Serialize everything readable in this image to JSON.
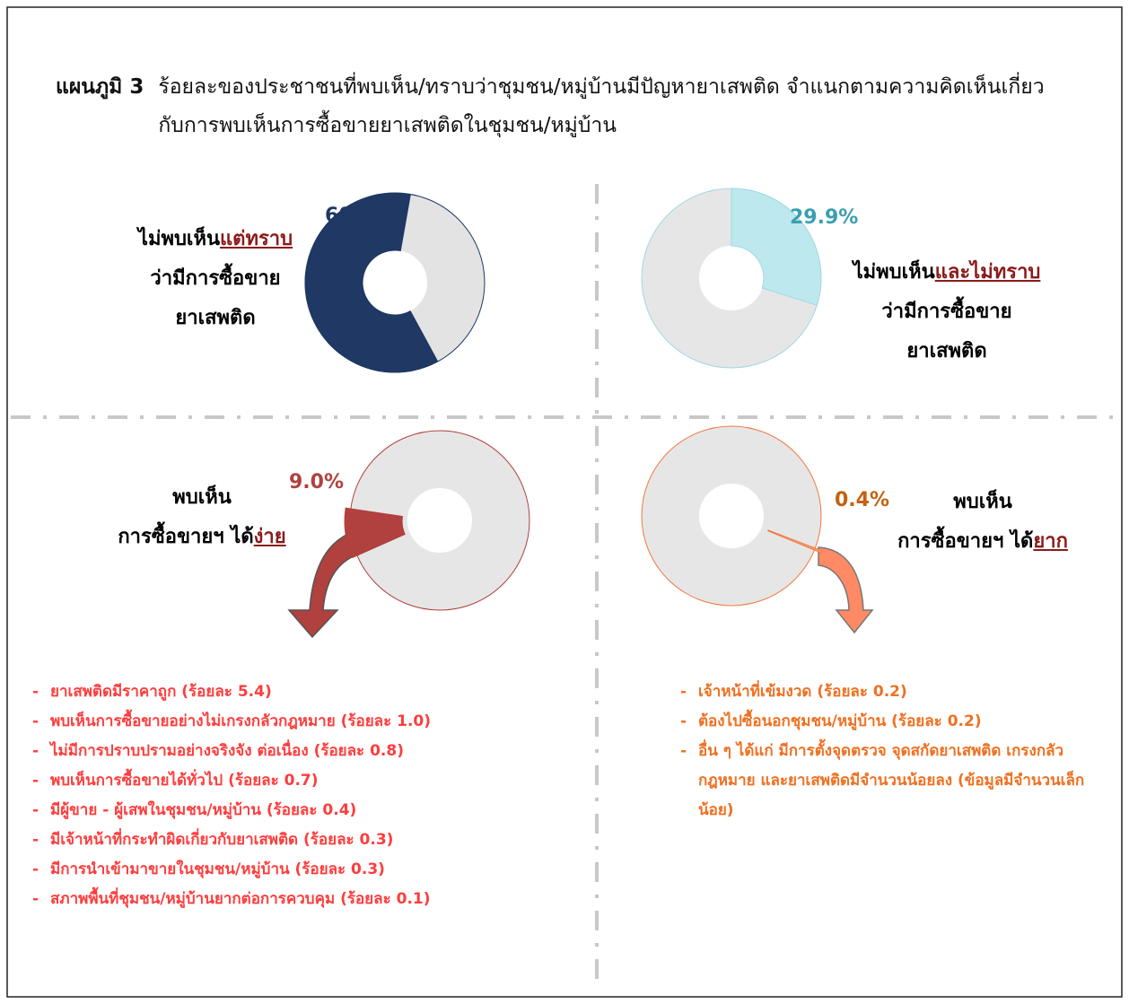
{
  "title": {
    "label": "แผนภูมิ 3",
    "text": "ร้อยละของประชาชนที่พบเห็น/ทราบว่าชุมชน/หมู่บ้านมีปัญหายาเสพติด จำแนกตามความคิดเห็นเกี่ยวกับการพบเห็นการซื้อขายยาเสพติดในชุมชน/หมู่บ้าน"
  },
  "chart_data": [
    {
      "type": "donut",
      "values": [
        60.7
      ],
      "value_labels": [
        "60.7%"
      ],
      "color": "#1f3864",
      "label_color": "#1f3864",
      "label": [
        {
          "text": "ไม่พบเห็น",
          "underline": "แต่ทราบ"
        },
        {
          "text": "ว่ามีการซื้อขาย"
        },
        {
          "text": "ยาเสพติด"
        }
      ]
    },
    {
      "type": "donut",
      "values": [
        29.9
      ],
      "value_labels": [
        "29.9%"
      ],
      "color": "#bde8ee",
      "label_color": "#3a9fb0",
      "label": [
        {
          "text": "ไม่พบเห็น",
          "underline": "และไม่ทราบ"
        },
        {
          "text": "ว่ามีการซื้อขาย"
        },
        {
          "text": "ยาเสพติด"
        }
      ]
    },
    {
      "type": "donut",
      "values": [
        9.0
      ],
      "value_labels": [
        "9.0%"
      ],
      "color": "#b0413e",
      "label_color": "#b0413e",
      "label": [
        {
          "text": "พบเห็น"
        },
        {
          "text": "การซื้อขายฯ ได้",
          "underline": "ง่าย"
        }
      ]
    },
    {
      "type": "donut",
      "values": [
        0.4
      ],
      "value_labels": [
        "0.4%"
      ],
      "color": "#f4a07a",
      "label_color": "#c4620f",
      "label": [
        {
          "text": "พบเห็น"
        },
        {
          "text": "การซื้อขายฯ ได้",
          "underline": "ยาก"
        }
      ]
    }
  ],
  "reasons": {
    "left": [
      "ยาเสพติดมีราคาถูก (ร้อยละ 5.4)",
      "พบเห็นการซื้อขายอย่างไม่เกรงกลัวกฎหมาย (ร้อยละ 1.0)",
      "ไม่มีการปราบปรามอย่างจริงจัง ต่อเนื่อง (ร้อยละ 0.8)",
      "พบเห็นการซื้อขายได้ทั่วไป (ร้อยละ 0.7)",
      "มีผู้ขาย - ผู้เสพในชุมชน/หมู่บ้าน (ร้อยละ 0.4)",
      "มีเจ้าหน้าที่กระทำผิดเกี่ยวกับยาเสพติด (ร้อยละ 0.3)",
      "มีการนำเข้ามาขายในชุมชน/หมู่บ้าน (ร้อยละ 0.3)",
      "สภาพพื้นที่ชุมชน/หมู่บ้านยากต่อการควบคุม (ร้อยละ 0.1)"
    ],
    "right": [
      "เจ้าหน้าที่เข้มงวด (ร้อยละ 0.2)",
      "ต้องไปซื้อนอกชุมชน/หมู่บ้าน (ร้อยละ 0.2)",
      "อื่น ๆ ได้แก่ มีการตั้งจุดตรวจ จุดสกัดยาเสพติด เกรงกลัวกฎหมาย และยาเสพติดมีจำนวนน้อยลง (ข้อมูลมีจำนวนเล็กน้อย)"
    ]
  }
}
